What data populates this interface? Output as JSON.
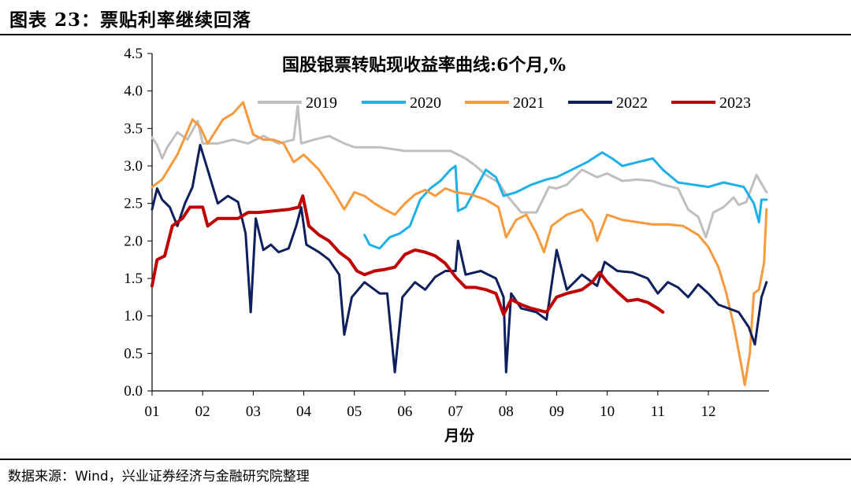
{
  "figure_title": "图表 23：票贴利率继续回落",
  "source_note": "数据来源：Wind，兴业证券经济与金融研究院整理",
  "chart_data": {
    "type": "line",
    "title": "国股银票转贴现收益率曲线:6个月,%",
    "xlabel": "月份",
    "ylabel": "",
    "categories": [
      "01",
      "02",
      "03",
      "04",
      "05",
      "06",
      "07",
      "08",
      "09",
      "10",
      "11",
      "12"
    ],
    "ylim": [
      0,
      4.5
    ],
    "yticks": [
      "0.0",
      "0.5",
      "1.0",
      "1.5",
      "2.0",
      "2.5",
      "3.0",
      "3.5",
      "4.0",
      "4.5"
    ],
    "grid": false,
    "legend_position": "top",
    "series": [
      {
        "name": "2019",
        "color": "#bfbfbf",
        "points": [
          [
            1.0,
            3.38
          ],
          [
            1.1,
            3.28
          ],
          [
            1.2,
            3.1
          ],
          [
            1.3,
            3.25
          ],
          [
            1.5,
            3.45
          ],
          [
            1.7,
            3.35
          ],
          [
            1.9,
            3.6
          ],
          [
            2.0,
            3.3
          ],
          [
            2.3,
            3.3
          ],
          [
            2.6,
            3.35
          ],
          [
            2.9,
            3.3
          ],
          [
            3.2,
            3.4
          ],
          [
            3.5,
            3.3
          ],
          [
            3.8,
            3.35
          ],
          [
            3.88,
            3.8
          ],
          [
            3.95,
            3.3
          ],
          [
            4.2,
            3.35
          ],
          [
            4.5,
            3.4
          ],
          [
            4.8,
            3.3
          ],
          [
            5.0,
            3.25
          ],
          [
            5.5,
            3.25
          ],
          [
            6.0,
            3.2
          ],
          [
            6.5,
            3.2
          ],
          [
            6.9,
            3.2
          ],
          [
            7.2,
            3.1
          ],
          [
            7.4,
            3.0
          ],
          [
            7.6,
            2.88
          ],
          [
            7.85,
            2.78
          ],
          [
            8.0,
            2.62
          ],
          [
            8.3,
            2.38
          ],
          [
            8.6,
            2.38
          ],
          [
            8.85,
            2.72
          ],
          [
            9.0,
            2.7
          ],
          [
            9.2,
            2.75
          ],
          [
            9.5,
            2.95
          ],
          [
            9.8,
            2.85
          ],
          [
            10.0,
            2.9
          ],
          [
            10.3,
            2.8
          ],
          [
            10.6,
            2.82
          ],
          [
            10.9,
            2.8
          ],
          [
            11.1,
            2.75
          ],
          [
            11.4,
            2.7
          ],
          [
            11.6,
            2.42
          ],
          [
            11.8,
            2.32
          ],
          [
            11.95,
            2.05
          ],
          [
            12.1,
            2.38
          ],
          [
            12.3,
            2.45
          ],
          [
            12.5,
            2.58
          ],
          [
            12.6,
            2.48
          ],
          [
            12.75,
            2.52
          ],
          [
            12.95,
            2.88
          ],
          [
            13.15,
            2.65
          ]
        ]
      },
      {
        "name": "2020",
        "color": "#1fb0e8",
        "points": [
          [
            5.2,
            2.08
          ],
          [
            5.3,
            1.95
          ],
          [
            5.5,
            1.9
          ],
          [
            5.7,
            2.05
          ],
          [
            5.9,
            2.1
          ],
          [
            6.1,
            2.2
          ],
          [
            6.3,
            2.55
          ],
          [
            6.5,
            2.7
          ],
          [
            6.7,
            2.8
          ],
          [
            6.9,
            2.95
          ],
          [
            7.0,
            3.0
          ],
          [
            7.05,
            2.4
          ],
          [
            7.2,
            2.45
          ],
          [
            7.4,
            2.7
          ],
          [
            7.6,
            2.95
          ],
          [
            7.8,
            2.85
          ],
          [
            7.95,
            2.6
          ],
          [
            8.2,
            2.65
          ],
          [
            8.5,
            2.75
          ],
          [
            8.8,
            2.82
          ],
          [
            9.0,
            2.85
          ],
          [
            9.3,
            2.95
          ],
          [
            9.6,
            3.05
          ],
          [
            9.9,
            3.18
          ],
          [
            10.1,
            3.1
          ],
          [
            10.3,
            3.0
          ],
          [
            10.6,
            3.05
          ],
          [
            10.9,
            3.1
          ],
          [
            11.1,
            2.95
          ],
          [
            11.4,
            2.78
          ],
          [
            11.7,
            2.75
          ],
          [
            12.0,
            2.72
          ],
          [
            12.3,
            2.78
          ],
          [
            12.5,
            2.75
          ],
          [
            12.7,
            2.72
          ],
          [
            12.9,
            2.5
          ],
          [
            13.0,
            2.25
          ],
          [
            13.05,
            2.55
          ],
          [
            13.15,
            2.55
          ]
        ]
      },
      {
        "name": "2021",
        "color": "#f79a3d",
        "points": [
          [
            1.0,
            2.72
          ],
          [
            1.2,
            2.82
          ],
          [
            1.5,
            3.15
          ],
          [
            1.8,
            3.62
          ],
          [
            1.95,
            3.52
          ],
          [
            2.1,
            3.3
          ],
          [
            2.4,
            3.62
          ],
          [
            2.6,
            3.7
          ],
          [
            2.8,
            3.85
          ],
          [
            3.0,
            3.42
          ],
          [
            3.2,
            3.35
          ],
          [
            3.4,
            3.35
          ],
          [
            3.6,
            3.3
          ],
          [
            3.8,
            3.05
          ],
          [
            4.0,
            3.15
          ],
          [
            4.3,
            2.95
          ],
          [
            4.6,
            2.65
          ],
          [
            4.8,
            2.42
          ],
          [
            5.0,
            2.65
          ],
          [
            5.2,
            2.6
          ],
          [
            5.4,
            2.5
          ],
          [
            5.6,
            2.42
          ],
          [
            5.8,
            2.35
          ],
          [
            6.0,
            2.5
          ],
          [
            6.2,
            2.62
          ],
          [
            6.4,
            2.68
          ],
          [
            6.6,
            2.6
          ],
          [
            6.8,
            2.7
          ],
          [
            7.0,
            2.65
          ],
          [
            7.3,
            2.62
          ],
          [
            7.6,
            2.55
          ],
          [
            7.85,
            2.45
          ],
          [
            8.0,
            2.05
          ],
          [
            8.2,
            2.28
          ],
          [
            8.4,
            2.35
          ],
          [
            8.6,
            2.1
          ],
          [
            8.75,
            1.85
          ],
          [
            8.9,
            2.2
          ],
          [
            9.2,
            2.35
          ],
          [
            9.5,
            2.42
          ],
          [
            9.7,
            2.25
          ],
          [
            9.8,
            2.0
          ],
          [
            10.0,
            2.35
          ],
          [
            10.3,
            2.28
          ],
          [
            10.6,
            2.25
          ],
          [
            10.9,
            2.22
          ],
          [
            11.2,
            2.22
          ],
          [
            11.5,
            2.2
          ],
          [
            11.8,
            2.08
          ],
          [
            12.0,
            1.92
          ],
          [
            12.2,
            1.65
          ],
          [
            12.35,
            1.32
          ],
          [
            12.5,
            0.88
          ],
          [
            12.65,
            0.35
          ],
          [
            12.72,
            0.08
          ],
          [
            12.82,
            0.5
          ],
          [
            12.9,
            1.3
          ],
          [
            13.0,
            1.35
          ],
          [
            13.1,
            1.7
          ],
          [
            13.15,
            2.42
          ]
        ]
      },
      {
        "name": "2022",
        "color": "#0d1f5c",
        "points": [
          [
            1.0,
            2.42
          ],
          [
            1.1,
            2.7
          ],
          [
            1.2,
            2.55
          ],
          [
            1.35,
            2.45
          ],
          [
            1.5,
            2.2
          ],
          [
            1.65,
            2.5
          ],
          [
            1.8,
            2.72
          ],
          [
            1.95,
            3.28
          ],
          [
            2.1,
            2.95
          ],
          [
            2.3,
            2.5
          ],
          [
            2.5,
            2.6
          ],
          [
            2.7,
            2.52
          ],
          [
            2.85,
            2.1
          ],
          [
            2.95,
            1.05
          ],
          [
            3.05,
            2.3
          ],
          [
            3.2,
            1.88
          ],
          [
            3.35,
            1.95
          ],
          [
            3.5,
            1.85
          ],
          [
            3.7,
            1.9
          ],
          [
            3.85,
            2.2
          ],
          [
            3.95,
            2.45
          ],
          [
            4.05,
            1.95
          ],
          [
            4.3,
            1.85
          ],
          [
            4.5,
            1.75
          ],
          [
            4.7,
            1.55
          ],
          [
            4.8,
            0.75
          ],
          [
            4.95,
            1.25
          ],
          [
            5.2,
            1.45
          ],
          [
            5.5,
            1.3
          ],
          [
            5.65,
            1.3
          ],
          [
            5.8,
            0.25
          ],
          [
            5.95,
            1.25
          ],
          [
            6.2,
            1.45
          ],
          [
            6.4,
            1.35
          ],
          [
            6.6,
            1.52
          ],
          [
            6.8,
            1.6
          ],
          [
            7.0,
            1.6
          ],
          [
            7.05,
            2.0
          ],
          [
            7.2,
            1.55
          ],
          [
            7.5,
            1.6
          ],
          [
            7.8,
            1.5
          ],
          [
            7.95,
            1.25
          ],
          [
            8.0,
            0.25
          ],
          [
            8.1,
            1.3
          ],
          [
            8.3,
            1.1
          ],
          [
            8.6,
            1.05
          ],
          [
            8.8,
            0.95
          ],
          [
            9.0,
            1.88
          ],
          [
            9.2,
            1.35
          ],
          [
            9.5,
            1.55
          ],
          [
            9.8,
            1.4
          ],
          [
            9.95,
            1.72
          ],
          [
            10.2,
            1.6
          ],
          [
            10.5,
            1.58
          ],
          [
            10.8,
            1.5
          ],
          [
            11.0,
            1.3
          ],
          [
            11.2,
            1.45
          ],
          [
            11.4,
            1.38
          ],
          [
            11.6,
            1.25
          ],
          [
            11.8,
            1.42
          ],
          [
            12.0,
            1.3
          ],
          [
            12.2,
            1.15
          ],
          [
            12.4,
            1.1
          ],
          [
            12.6,
            1.05
          ],
          [
            12.8,
            0.85
          ],
          [
            12.92,
            0.62
          ],
          [
            13.05,
            1.25
          ],
          [
            13.15,
            1.45
          ]
        ]
      },
      {
        "name": "2023",
        "color": "#c00000",
        "points": [
          [
            1.0,
            1.4
          ],
          [
            1.1,
            1.75
          ],
          [
            1.25,
            1.8
          ],
          [
            1.4,
            2.2
          ],
          [
            1.6,
            2.3
          ],
          [
            1.75,
            2.45
          ],
          [
            2.0,
            2.45
          ],
          [
            2.1,
            2.2
          ],
          [
            2.3,
            2.3
          ],
          [
            2.5,
            2.3
          ],
          [
            2.7,
            2.3
          ],
          [
            2.9,
            2.38
          ],
          [
            3.1,
            2.38
          ],
          [
            3.4,
            2.4
          ],
          [
            3.7,
            2.42
          ],
          [
            3.9,
            2.45
          ],
          [
            3.98,
            2.6
          ],
          [
            4.1,
            2.2
          ],
          [
            4.3,
            2.08
          ],
          [
            4.5,
            2.0
          ],
          [
            4.7,
            1.85
          ],
          [
            4.9,
            1.75
          ],
          [
            5.05,
            1.6
          ],
          [
            5.2,
            1.55
          ],
          [
            5.4,
            1.6
          ],
          [
            5.6,
            1.62
          ],
          [
            5.8,
            1.65
          ],
          [
            6.0,
            1.82
          ],
          [
            6.2,
            1.88
          ],
          [
            6.4,
            1.85
          ],
          [
            6.6,
            1.8
          ],
          [
            6.8,
            1.7
          ],
          [
            7.0,
            1.52
          ],
          [
            7.2,
            1.38
          ],
          [
            7.4,
            1.38
          ],
          [
            7.6,
            1.35
          ],
          [
            7.8,
            1.3
          ],
          [
            7.95,
            1.02
          ],
          [
            8.1,
            1.22
          ],
          [
            8.3,
            1.15
          ],
          [
            8.5,
            1.1
          ],
          [
            8.8,
            1.05
          ],
          [
            9.0,
            1.25
          ],
          [
            9.2,
            1.3
          ],
          [
            9.5,
            1.35
          ],
          [
            9.7,
            1.45
          ],
          [
            9.85,
            1.58
          ],
          [
            10.0,
            1.45
          ],
          [
            10.2,
            1.32
          ],
          [
            10.4,
            1.2
          ],
          [
            10.6,
            1.22
          ],
          [
            10.8,
            1.18
          ],
          [
            11.0,
            1.1
          ],
          [
            11.1,
            1.05
          ]
        ]
      }
    ]
  }
}
